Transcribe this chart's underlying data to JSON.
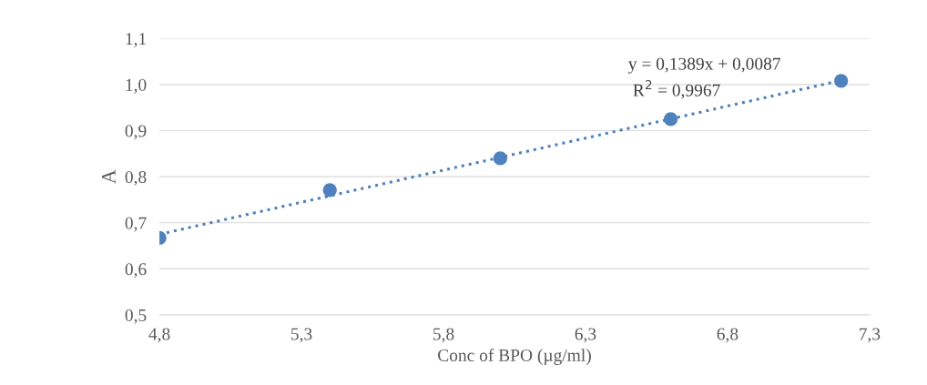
{
  "chart_data": {
    "type": "scatter",
    "xlabel": "Conc of BPO (µg/ml)",
    "ylabel": "A",
    "series": [
      {
        "color": "#4f81bd",
        "x": [
          4.8,
          5.4,
          6.0,
          6.6,
          7.2
        ],
        "values": [
          0.667,
          0.771,
          0.84,
          0.925,
          1.008
        ],
        "marker": "circle"
      },
      {
        "type": "line",
        "color": "#4f81bd",
        "x": [
          4.8,
          7.2
        ],
        "values": [
          0.675,
          1.009
        ],
        "line_style": "dotted"
      }
    ],
    "xlim": [
      4.8,
      7.3
    ],
    "ylim": [
      0.5,
      1.1
    ],
    "xticks": [
      {
        "value": 4.8,
        "label": "4,8"
      },
      {
        "value": 5.3,
        "label": "5,3"
      },
      {
        "value": 5.8,
        "label": "5,8"
      },
      {
        "value": 6.3,
        "label": "6,3"
      },
      {
        "value": 6.8,
        "label": "6,8"
      },
      {
        "value": 7.3,
        "label": "7,3"
      }
    ],
    "yticks": [
      {
        "value": 0.5,
        "label": "0,5"
      },
      {
        "value": 0.6,
        "label": "0,6"
      },
      {
        "value": 0.7,
        "label": "0,7"
      },
      {
        "value": 0.8,
        "label": "0,8"
      },
      {
        "value": 0.9,
        "label": "0,9"
      },
      {
        "value": 1.0,
        "label": "1,0"
      },
      {
        "value": 1.1,
        "label": "1,1"
      }
    ],
    "grid": "y",
    "annotations": [
      "y = 0,1389x + 0,0087",
      "R$^{2}$ = 0,9967"
    ]
  }
}
